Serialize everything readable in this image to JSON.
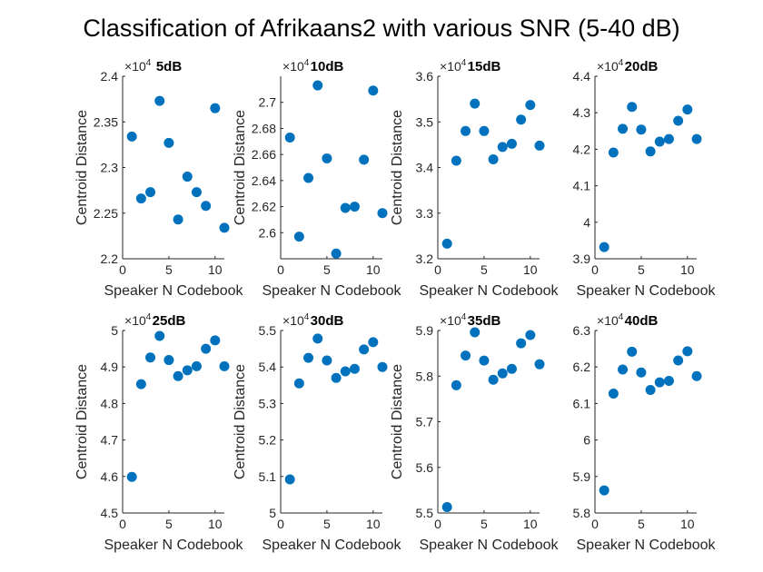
{
  "chart_data": {
    "title": "Classification of Afrikaans2 with various SNR (5-40 dB)",
    "type": "scatter",
    "marker_color": "#0072BD",
    "grid": false,
    "panels": [
      {
        "title": "5dB",
        "xlabel": "Speaker N Codebook",
        "ylabel": "Centroid Distance",
        "y_multiplier_base": "10",
        "y_multiplier_exp": "4",
        "xlim": [
          0,
          11
        ],
        "ylim": [
          2.2,
          2.4
        ],
        "xticks": [
          "0",
          "5",
          "10"
        ],
        "yticks": [
          "2.2",
          "2.25",
          "2.3",
          "2.35",
          "2.4"
        ],
        "x": [
          1,
          2,
          3,
          4,
          5,
          6,
          7,
          8,
          9,
          10,
          11
        ],
        "y": [
          2.334,
          2.266,
          2.273,
          2.373,
          2.327,
          2.243,
          2.29,
          2.273,
          2.258,
          2.365,
          2.234
        ]
      },
      {
        "title": "10dB",
        "xlabel": "Speaker N Codebook",
        "ylabel": "Centroid Distance",
        "y_multiplier_base": "10",
        "y_multiplier_exp": "4",
        "xlim": [
          0,
          11
        ],
        "ylim": [
          2.58,
          2.72
        ],
        "xticks": [
          "0",
          "5",
          "10"
        ],
        "yticks": [
          "2.6",
          "2.62",
          "2.64",
          "2.66",
          "2.68",
          "2.7"
        ],
        "x": [
          1,
          2,
          3,
          4,
          5,
          6,
          7,
          8,
          9,
          10,
          11
        ],
        "y": [
          2.673,
          2.597,
          2.642,
          2.713,
          2.657,
          2.584,
          2.619,
          2.62,
          2.656,
          2.709,
          2.615
        ]
      },
      {
        "title": "15dB",
        "xlabel": "Speaker N Codebook",
        "ylabel": "Centroid Distance",
        "y_multiplier_base": "10",
        "y_multiplier_exp": "4",
        "xlim": [
          0,
          11
        ],
        "ylim": [
          3.2,
          3.6
        ],
        "xticks": [
          "0",
          "5",
          "10"
        ],
        "yticks": [
          "3.2",
          "3.3",
          "3.4",
          "3.5",
          "3.6"
        ],
        "x": [
          1,
          2,
          3,
          4,
          5,
          6,
          7,
          8,
          9,
          10,
          11
        ],
        "y": [
          3.233,
          3.415,
          3.48,
          3.54,
          3.48,
          3.418,
          3.445,
          3.452,
          3.505,
          3.537,
          3.448
        ]
      },
      {
        "title": "20dB",
        "xlabel": "Speaker N Codebook",
        "ylabel": "",
        "y_multiplier_base": "10",
        "y_multiplier_exp": "4",
        "xlim": [
          0,
          11
        ],
        "ylim": [
          3.9,
          4.4
        ],
        "xticks": [
          "0",
          "5",
          "10"
        ],
        "yticks": [
          "3.9",
          "4",
          "4.1",
          "4.2",
          "4.3",
          "4.4"
        ],
        "x": [
          1,
          2,
          3,
          4,
          5,
          6,
          7,
          8,
          9,
          10,
          11
        ],
        "y": [
          3.932,
          4.191,
          4.256,
          4.316,
          4.254,
          4.194,
          4.221,
          4.228,
          4.278,
          4.309,
          4.228
        ]
      },
      {
        "title": "25dB",
        "xlabel": "Speaker N Codebook",
        "ylabel": "Centroid Distance",
        "y_multiplier_base": "10",
        "y_multiplier_exp": "4",
        "xlim": [
          0,
          11
        ],
        "ylim": [
          4.5,
          5.0
        ],
        "xticks": [
          "0",
          "5",
          "10"
        ],
        "yticks": [
          "4.5",
          "4.6",
          "4.7",
          "4.8",
          "4.9",
          "5"
        ],
        "x": [
          1,
          2,
          3,
          4,
          5,
          6,
          7,
          8,
          9,
          10,
          11
        ],
        "y": [
          4.599,
          4.853,
          4.926,
          4.985,
          4.919,
          4.875,
          4.891,
          4.902,
          4.95,
          4.973,
          4.902
        ]
      },
      {
        "title": "30dB",
        "xlabel": "Speaker N Codebook",
        "ylabel": "Centroid Distance",
        "y_multiplier_base": "10",
        "y_multiplier_exp": "4",
        "xlim": [
          0,
          11
        ],
        "ylim": [
          5.0,
          5.5
        ],
        "xticks": [
          "0",
          "5",
          "10"
        ],
        "yticks": [
          "5",
          "5.1",
          "5.2",
          "5.3",
          "5.4",
          "5.5"
        ],
        "x": [
          1,
          2,
          3,
          4,
          5,
          6,
          7,
          8,
          9,
          10,
          11
        ],
        "y": [
          5.092,
          5.355,
          5.425,
          5.478,
          5.418,
          5.37,
          5.388,
          5.395,
          5.448,
          5.468,
          5.4
        ]
      },
      {
        "title": "35dB",
        "xlabel": "Speaker N Codebook",
        "ylabel": "Centroid Distance",
        "y_multiplier_base": "10",
        "y_multiplier_exp": "4",
        "xlim": [
          0,
          11
        ],
        "ylim": [
          5.5,
          5.9
        ],
        "xticks": [
          "0",
          "5",
          "10"
        ],
        "yticks": [
          "5.5",
          "5.6",
          "5.7",
          "5.8",
          "5.9"
        ],
        "x": [
          1,
          2,
          3,
          4,
          5,
          6,
          7,
          8,
          9,
          10,
          11
        ],
        "y": [
          5.513,
          5.78,
          5.845,
          5.896,
          5.834,
          5.792,
          5.806,
          5.816,
          5.872,
          5.89,
          5.826
        ]
      },
      {
        "title": "40dB",
        "xlabel": "Speaker N Codebook",
        "ylabel": "",
        "y_multiplier_base": "10",
        "y_multiplier_exp": "4",
        "xlim": [
          0,
          11
        ],
        "ylim": [
          5.8,
          6.3
        ],
        "xticks": [
          "0",
          "5",
          "10"
        ],
        "yticks": [
          "5.8",
          "5.9",
          "6",
          "6.1",
          "6.2",
          "6.3"
        ],
        "x": [
          1,
          2,
          3,
          4,
          5,
          6,
          7,
          8,
          9,
          10,
          11
        ],
        "y": [
          5.862,
          6.127,
          6.193,
          6.242,
          6.185,
          6.137,
          6.158,
          6.162,
          6.218,
          6.243,
          6.175
        ]
      }
    ]
  }
}
